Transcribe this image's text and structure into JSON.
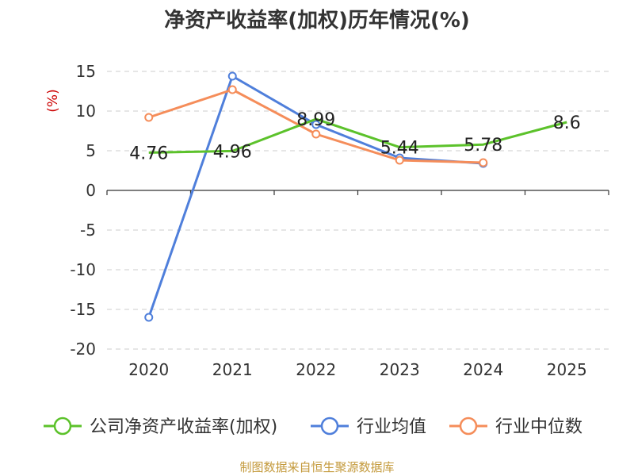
{
  "chart_data": {
    "type": "line",
    "title": "净资产收益率(加权)历年情况(%)",
    "ylabel": "(%)",
    "xlabel": "",
    "categories": [
      "2020",
      "2021",
      "2022",
      "2023",
      "2024",
      "2025"
    ],
    "ylim": [
      -20,
      15
    ],
    "yticks": [
      15,
      10,
      5,
      0,
      -5,
      -10,
      -15,
      -20
    ],
    "grid": true,
    "legend_position": "bottom",
    "series": [
      {
        "name": "公司净资产收益率(加权)",
        "color": "#5cc22b",
        "values": [
          4.76,
          4.96,
          8.99,
          5.44,
          5.78,
          8.6
        ],
        "labels": [
          "4.76",
          "4.96",
          "8.99",
          "5.44",
          "5.78",
          "8.6"
        ]
      },
      {
        "name": "行业均值",
        "color": "#4f7fdb",
        "values": [
          -16.0,
          14.4,
          8.3,
          4.1,
          3.4,
          null
        ]
      },
      {
        "name": "行业中位数",
        "color": "#f58d5a",
        "values": [
          9.2,
          12.7,
          7.1,
          3.8,
          3.5,
          null
        ]
      }
    ]
  },
  "source": "制图数据来自恒生聚源数据库",
  "colors": {
    "unit_label": "#cc0000",
    "source_text": "#c49a3c"
  }
}
